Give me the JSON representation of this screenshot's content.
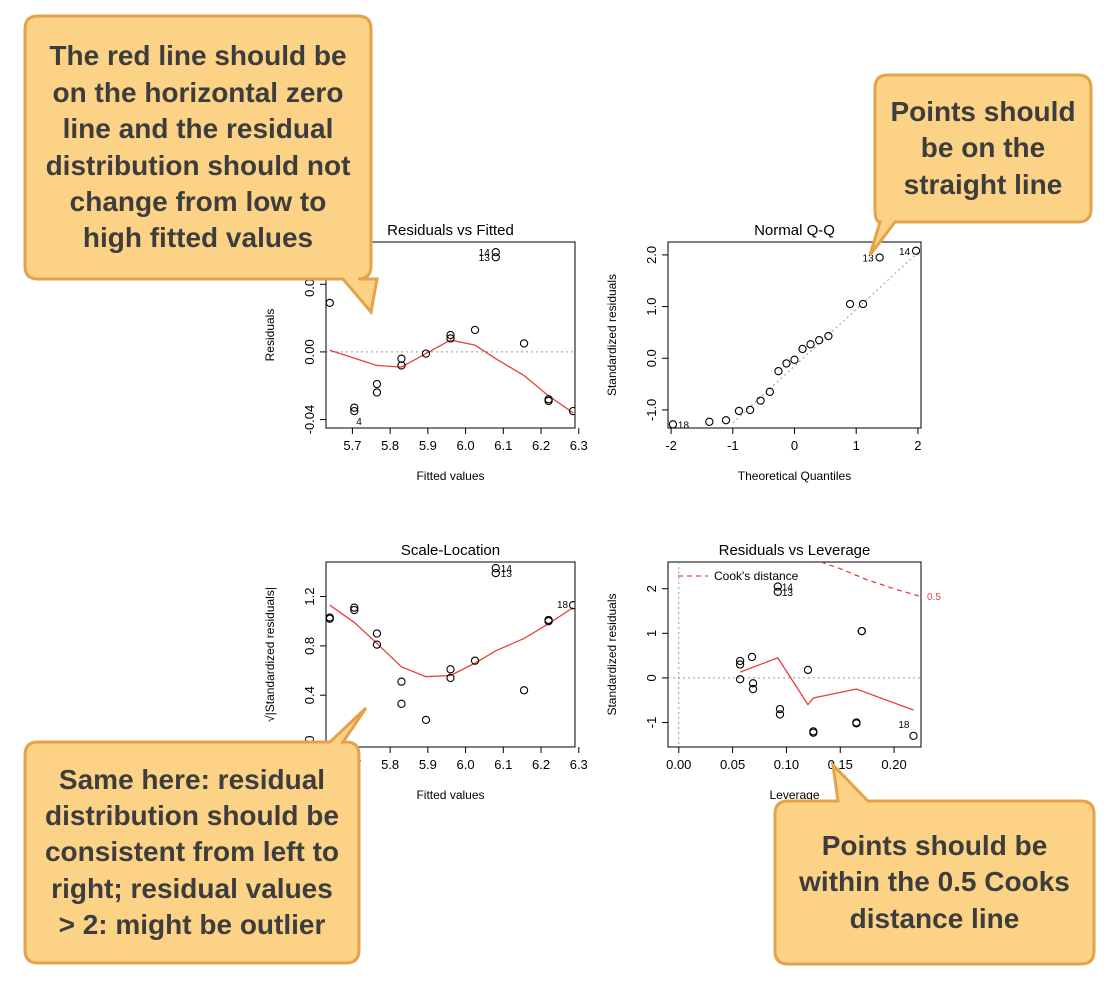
{
  "chart_data": [
    {
      "type": "scatter",
      "title": "Residuals vs Fitted",
      "xlabel": "Fitted values",
      "ylabel": "Residuals",
      "xlim": [
        5.63,
        6.29
      ],
      "ylim": [
        -0.045,
        0.065
      ],
      "xticks": [
        5.7,
        5.8,
        5.9,
        6.0,
        6.1,
        6.2,
        6.3
      ],
      "xtick_labels": [
        "5.7",
        "5.8",
        "5.9",
        "6.0",
        "6.1",
        "6.2",
        "6.3"
      ],
      "yticks": [
        -0.04,
        0.0,
        0.04
      ],
      "ytick_labels": [
        "-0.04",
        "0.00",
        "0.04"
      ],
      "reference_line": {
        "y": 0
      },
      "points": [
        {
          "x": 5.64,
          "y": 0.029
        },
        {
          "x": 5.705,
          "y": -0.033
        },
        {
          "x": 5.705,
          "y": -0.035
        },
        {
          "x": 5.765,
          "y": -0.019
        },
        {
          "x": 5.765,
          "y": -0.024
        },
        {
          "x": 5.83,
          "y": -0.004
        },
        {
          "x": 5.83,
          "y": -0.008
        },
        {
          "x": 5.895,
          "y": -0.001
        },
        {
          "x": 5.96,
          "y": 0.01
        },
        {
          "x": 5.96,
          "y": 0.008
        },
        {
          "x": 6.025,
          "y": 0.013
        },
        {
          "x": 6.08,
          "y": 0.059
        },
        {
          "x": 6.08,
          "y": 0.056
        },
        {
          "x": 6.155,
          "y": 0.005
        },
        {
          "x": 6.22,
          "y": -0.028
        },
        {
          "x": 6.22,
          "y": -0.029
        },
        {
          "x": 6.285,
          "y": -0.035
        }
      ],
      "smooth_line": [
        {
          "x": 5.64,
          "y": 0.001
        },
        {
          "x": 5.765,
          "y": -0.008
        },
        {
          "x": 5.83,
          "y": -0.009
        },
        {
          "x": 5.895,
          "y": -0.001
        },
        {
          "x": 5.96,
          "y": 0.007
        },
        {
          "x": 6.025,
          "y": 0.004
        },
        {
          "x": 6.08,
          "y": -0.004
        },
        {
          "x": 6.155,
          "y": -0.014
        },
        {
          "x": 6.22,
          "y": -0.026
        },
        {
          "x": 6.285,
          "y": -0.036
        }
      ],
      "annotations": [
        {
          "text": "14",
          "x": 6.08,
          "y": 0.059
        },
        {
          "text": "13",
          "x": 6.08,
          "y": 0.056
        },
        {
          "text": "4",
          "x": 5.705,
          "y": -0.035
        }
      ]
    },
    {
      "type": "scatter",
      "title": "Normal Q-Q",
      "xlabel": "Theoretical Quantiles",
      "ylabel": "Standardized residuals",
      "xlim": [
        -2.05,
        2.05
      ],
      "ylim": [
        -1.35,
        2.25
      ],
      "xticks": [
        -2,
        -1,
        0,
        1,
        2
      ],
      "xtick_labels": [
        "-2",
        "-1",
        "0",
        "1",
        "2"
      ],
      "yticks": [
        -1.0,
        0.0,
        1.0,
        2.0
      ],
      "ytick_labels": [
        "-1.0",
        "0.0",
        "1.0",
        "2.0"
      ],
      "reference_line": {
        "from": [
          -1.0,
          -1.25
        ],
        "to": [
          2.05,
          2.1
        ]
      },
      "points": [
        {
          "x": -1.97,
          "y": -1.28
        },
        {
          "x": -1.38,
          "y": -1.23
        },
        {
          "x": -1.11,
          "y": -1.2
        },
        {
          "x": -0.9,
          "y": -1.02
        },
        {
          "x": -0.72,
          "y": -1.0
        },
        {
          "x": -0.55,
          "y": -0.82
        },
        {
          "x": -0.4,
          "y": -0.65
        },
        {
          "x": -0.26,
          "y": -0.25
        },
        {
          "x": -0.13,
          "y": -0.1
        },
        {
          "x": 0.0,
          "y": -0.03
        },
        {
          "x": 0.13,
          "y": 0.18
        },
        {
          "x": 0.26,
          "y": 0.27
        },
        {
          "x": 0.4,
          "y": 0.35
        },
        {
          "x": 0.55,
          "y": 0.43
        },
        {
          "x": 0.9,
          "y": 1.05
        },
        {
          "x": 1.11,
          "y": 1.05
        },
        {
          "x": 1.38,
          "y": 1.95
        },
        {
          "x": 1.97,
          "y": 2.08
        }
      ],
      "annotations": [
        {
          "text": "18",
          "x": -1.97,
          "y": -1.28
        },
        {
          "text": "13",
          "x": 1.38,
          "y": 1.95
        },
        {
          "text": "14",
          "x": 1.97,
          "y": 2.08
        }
      ]
    },
    {
      "type": "scatter",
      "title": "Scale-Location",
      "xlabel": "Fitted values",
      "ylabel": "√|Standardized residuals|",
      "xlim": [
        5.63,
        6.29
      ],
      "ylim": [
        -0.02,
        1.48
      ],
      "xticks": [
        5.7,
        5.8,
        5.9,
        6.0,
        6.1,
        6.2,
        6.3
      ],
      "xtick_labels": [
        "5.7",
        "5.8",
        "5.9",
        "6.0",
        "6.1",
        "6.2",
        "6.3"
      ],
      "yticks": [
        0.0,
        0.4,
        0.8,
        1.2
      ],
      "ytick_labels": [
        "0.0",
        "0.4",
        "0.8",
        "1.2"
      ],
      "points": [
        {
          "x": 5.64,
          "y": 1.02
        },
        {
          "x": 5.64,
          "y": 1.03
        },
        {
          "x": 5.705,
          "y": 1.09
        },
        {
          "x": 5.705,
          "y": 1.11
        },
        {
          "x": 5.765,
          "y": 0.9
        },
        {
          "x": 5.765,
          "y": 0.81
        },
        {
          "x": 5.83,
          "y": 0.51
        },
        {
          "x": 5.83,
          "y": 0.33
        },
        {
          "x": 5.895,
          "y": 0.2
        },
        {
          "x": 5.96,
          "y": 0.61
        },
        {
          "x": 5.96,
          "y": 0.54
        },
        {
          "x": 6.025,
          "y": 0.68
        },
        {
          "x": 6.08,
          "y": 1.43
        },
        {
          "x": 6.08,
          "y": 1.39
        },
        {
          "x": 6.155,
          "y": 0.44
        },
        {
          "x": 6.22,
          "y": 1.0
        },
        {
          "x": 6.22,
          "y": 1.01
        },
        {
          "x": 6.285,
          "y": 1.13
        }
      ],
      "smooth_line": [
        {
          "x": 5.64,
          "y": 1.13
        },
        {
          "x": 5.705,
          "y": 0.99
        },
        {
          "x": 5.765,
          "y": 0.82
        },
        {
          "x": 5.83,
          "y": 0.63
        },
        {
          "x": 5.895,
          "y": 0.55
        },
        {
          "x": 5.96,
          "y": 0.56
        },
        {
          "x": 6.025,
          "y": 0.66
        },
        {
          "x": 6.08,
          "y": 0.76
        },
        {
          "x": 6.155,
          "y": 0.86
        },
        {
          "x": 6.22,
          "y": 0.98
        },
        {
          "x": 6.285,
          "y": 1.11
        }
      ],
      "annotations": [
        {
          "text": "14",
          "x": 6.08,
          "y": 1.43
        },
        {
          "text": "13",
          "x": 6.08,
          "y": 1.39
        },
        {
          "text": "18",
          "x": 6.285,
          "y": 1.13
        }
      ]
    },
    {
      "type": "scatter",
      "title": "Residuals vs Leverage",
      "xlabel": "Leverage",
      "ylabel": "Standardized residuals",
      "xlim": [
        -0.01,
        0.225
      ],
      "ylim": [
        -1.55,
        2.6
      ],
      "xticks": [
        0.0,
        0.05,
        0.1,
        0.15,
        0.2
      ],
      "xtick_labels": [
        "0.00",
        "0.05",
        "0.10",
        "0.15",
        "0.20"
      ],
      "yticks": [
        -1,
        0,
        1,
        2
      ],
      "ytick_labels": [
        "-1",
        "0",
        "1",
        "2"
      ],
      "reference_line": {
        "y": 0
      },
      "points": [
        {
          "x": 0.057,
          "y": 0.38
        },
        {
          "x": 0.057,
          "y": 0.3
        },
        {
          "x": 0.057,
          "y": -0.03
        },
        {
          "x": 0.068,
          "y": 0.47
        },
        {
          "x": 0.069,
          "y": -0.12
        },
        {
          "x": 0.069,
          "y": -0.25
        },
        {
          "x": 0.092,
          "y": 2.05
        },
        {
          "x": 0.092,
          "y": 1.93
        },
        {
          "x": 0.094,
          "y": -0.7
        },
        {
          "x": 0.094,
          "y": -0.82
        },
        {
          "x": 0.12,
          "y": 0.18
        },
        {
          "x": 0.125,
          "y": -1.2
        },
        {
          "x": 0.125,
          "y": -1.23
        },
        {
          "x": 0.165,
          "y": -1.02
        },
        {
          "x": 0.165,
          "y": -1.0
        },
        {
          "x": 0.17,
          "y": 1.05
        },
        {
          "x": 0.17,
          "y": 1.05
        },
        {
          "x": 0.218,
          "y": -1.3
        }
      ],
      "smooth_line": [
        {
          "x": 0.057,
          "y": 0.13
        },
        {
          "x": 0.092,
          "y": 0.45
        },
        {
          "x": 0.12,
          "y": -0.6
        },
        {
          "x": 0.125,
          "y": -0.45
        },
        {
          "x": 0.165,
          "y": -0.25
        },
        {
          "x": 0.218,
          "y": -0.72
        }
      ],
      "cooks_line": {
        "label": "0.5",
        "points": [
          {
            "x": 0.132,
            "y": 2.6
          },
          {
            "x": 0.15,
            "y": 2.45
          },
          {
            "x": 0.175,
            "y": 2.2
          },
          {
            "x": 0.2,
            "y": 2.0
          },
          {
            "x": 0.223,
            "y": 1.84
          }
        ]
      },
      "legend": {
        "label": "Cook's distance",
        "placement": "top-left"
      },
      "annotations": [
        {
          "text": "14",
          "x": 0.092,
          "y": 2.05
        },
        {
          "text": "13",
          "x": 0.092,
          "y": 1.93
        },
        {
          "text": "18",
          "x": 0.218,
          "y": -1.3
        }
      ]
    }
  ],
  "callouts": {
    "fitted": "The red line should be\non the horizontal zero\nline and the residual\ndistribution should not\nchange from low to\nhigh fitted values",
    "qq": "Points should\nbe on the\nstraight line",
    "scale": "Same here: residual\ndistribution should be\nconsistent from left to\nright; residual values\n> 2: might be outlier",
    "leverage": "Points should be\nwithin the 0.5 Cooks\ndistance line"
  },
  "colors": {
    "callout_fill": "#fcd386",
    "callout_border": "#e4a24a",
    "smooth_line": "#e8413a",
    "point": "#000000"
  }
}
